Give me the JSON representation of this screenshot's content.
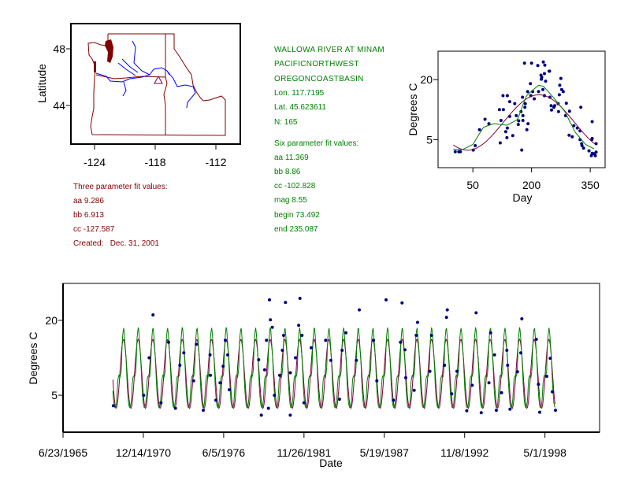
{
  "colors": {
    "points": "#000080",
    "three_param_fit": "#800040",
    "six_param_fit": "#008000",
    "map_borders": "#800000",
    "map_rivers": "#0000ff",
    "site_marker": "#800040"
  },
  "map": {
    "ylabel": "Latitude",
    "x_ticks": [
      "-124",
      "-118",
      "-112"
    ],
    "y_ticks": [
      "48",
      "44"
    ],
    "site_marker_icon": "triangle"
  },
  "three_param": {
    "title": "Three parameter fit values:",
    "lines": [
      "aa 9.286",
      "bb 6.913",
      "cc -127.587"
    ],
    "created": "Created:   Dec. 31, 2001"
  },
  "station": {
    "lines": [
      "WALLOWA RIVER AT MINAM",
      "PACIFICNORTHWEST",
      "OREGONCOASTBASIN",
      "Lon. 117.7195",
      "Lat. 45.623611",
      "N: 165"
    ]
  },
  "six_param": {
    "title": "Six parameter fit values:",
    "lines": [
      "aa 11.369",
      "bb 8.86",
      "cc -102.828",
      "mag 8.55",
      "begin 73.492",
      "end 235.087"
    ]
  },
  "chart_data": [
    {
      "type": "scatter",
      "xlabel": "Day",
      "ylabel": "Degrees C",
      "x_ticks": [
        50,
        200,
        350
      ],
      "y_ticks": [
        5,
        20
      ],
      "xlim": [
        -39,
        388
      ],
      "ylim": [
        -2,
        27.1
      ],
      "three_param_fit": {
        "aa": 9.286,
        "bb": 6.913,
        "cc": -127.587
      },
      "six_param_fit_curve": [
        [
          0,
          2.6
        ],
        [
          23,
          2.5
        ],
        [
          50,
          3.8
        ],
        [
          77,
          8.1
        ],
        [
          104,
          9.0
        ],
        [
          137,
          8.6
        ],
        [
          164,
          10.0
        ],
        [
          187,
          16.0
        ],
        [
          218,
          18.6
        ],
        [
          231,
          18.3
        ],
        [
          258,
          15.3
        ],
        [
          285,
          12.0
        ],
        [
          312,
          6.8
        ],
        [
          338,
          3.8
        ],
        [
          362,
          2.6
        ]
      ],
      "grid": false
    },
    {
      "type": "scatter",
      "xlabel": "Date",
      "ylabel": "Degrees C",
      "x_ticks": [
        "6/23/1965",
        "12/14/1970",
        "6/5/1976",
        "11/26/1981",
        "5/19/1987",
        "11/8/1992",
        "5/1/1998"
      ],
      "y_ticks": [
        5,
        20
      ],
      "xlim": [
        "1965-06-23",
        "2002-01-20"
      ],
      "ylim": [
        -2.4,
        27.4
      ],
      "fit_range": [
        "1968-11-15",
        "1999-01-20"
      ],
      "grid": false,
      "points": [
        [
          "1968-11-28",
          2.9
        ],
        [
          "1970-12-20",
          5.0
        ],
        [
          "1971-08-12",
          21.1
        ],
        [
          "1971-05-08",
          12.5
        ],
        [
          "1972-02-25",
          3.5
        ],
        [
          "1973-02-20",
          2.4
        ],
        [
          "1972-09-03",
          15.6
        ],
        [
          "1973-06-10",
          11.0
        ],
        [
          "1973-09-16",
          13.5
        ],
        [
          "1974-05-18",
          7.9
        ],
        [
          "1974-07-26",
          15.2
        ],
        [
          "1975-01-14",
          2.0
        ],
        [
          "1975-07-02",
          13.1
        ],
        [
          "1975-07-10",
          9.0
        ],
        [
          "1975-11-24",
          4.0
        ],
        [
          "1976-03-07",
          7.5
        ],
        [
          "1976-07-16",
          16.0
        ],
        [
          "1976-09-13",
          13.1
        ],
        [
          "1976-10-22",
          6.1
        ],
        [
          "1976-05-23",
          10.8
        ],
        [
          "1978-10-24",
          12.1
        ],
        [
          "1978-12-29",
          1.0
        ],
        [
          "1979-06-24",
          2.4
        ],
        [
          "1979-07-19",
          24.1
        ],
        [
          "1979-08-13",
          20.1
        ],
        [
          "1979-09-29",
          18.6
        ],
        [
          "1979-05-07",
          16.0
        ],
        [
          "1979-03-22",
          10.1
        ],
        [
          "1979-11-20",
          5.0
        ],
        [
          "1980-08-21",
          23.6
        ],
        [
          "1980-07-08",
          17.0
        ],
        [
          "1980-06-05",
          14.0
        ],
        [
          "1980-03-31",
          9.0
        ],
        [
          "1980-12-18",
          1.0
        ],
        [
          "1980-12-20",
          9.5
        ],
        [
          "1981-04-28",
          12.5
        ],
        [
          "1981-07-16",
          19.0
        ],
        [
          "1981-08-18",
          24.4
        ],
        [
          "1981-10-08",
          17.0
        ],
        [
          "1981-11-25",
          3.5
        ],
        [
          "1982-05-24",
          14.5
        ],
        [
          "1983-05-18",
          16.0
        ],
        [
          "1983-09-26",
          12.0
        ],
        [
          "1984-10-03",
          17.5
        ],
        [
          "1984-07-02",
          14.0
        ],
        [
          "1984-04-29",
          4.2
        ],
        [
          "1985-06-22",
          12.0
        ],
        [
          "1985-09-03",
          22.1
        ],
        [
          "1986-08-21",
          16.0
        ],
        [
          "1986-11-13",
          7.9
        ],
        [
          "1987-07-01",
          24.1
        ],
        [
          "1987-12-31",
          4.0
        ],
        [
          "1988-06-25",
          15.6
        ],
        [
          "1988-08-03",
          23.5
        ],
        [
          "1988-10-15",
          14.1
        ],
        [
          "1988-11-03",
          8.5
        ],
        [
          "1989-06-01",
          6.0
        ],
        [
          "1989-07-22",
          17.0
        ],
        [
          "1989-08-24",
          19.6
        ],
        [
          "1990-08-06",
          17.0
        ],
        [
          "1990-06-27",
          9.8
        ],
        [
          "1991-06-27",
          11.0
        ],
        [
          "1991-08-14",
          20.6
        ],
        [
          "1991-09-02",
          22.1
        ],
        [
          "1991-12-21",
          5.3
        ],
        [
          "1992-05-01",
          9.8
        ],
        [
          "1992-12-30",
          1.9
        ],
        [
          "1993-05-14",
          7.0
        ],
        [
          "1993-08-21",
          21.5
        ],
        [
          "1993-12-26",
          1.5
        ],
        [
          "1994-08-17",
          17.5
        ],
        [
          "1994-11-22",
          13.1
        ],
        [
          "1994-07-07",
          7.5
        ],
        [
          "1995-01-05",
          2.0
        ],
        [
          "1995-09-25",
          14.0
        ],
        [
          "1995-10-14",
          11.0
        ],
        [
          "1995-05-17",
          5.5
        ],
        [
          "1995-12-13",
          2.2
        ],
        [
          "1996-09-06",
          13.5
        ],
        [
          "1996-06-15",
          9.7
        ],
        [
          "1996-10-01",
          20.3
        ],
        [
          "1997-09-28",
          16.2
        ],
        [
          "1997-11-20",
          7.2
        ],
        [
          "1997-12-21",
          1.6
        ],
        [
          "1998-09-08",
          12.4
        ],
        [
          "1998-06-15",
          8.8
        ],
        [
          "1998-10-31",
          5.7
        ],
        [
          "1999-01-18",
          2.0
        ]
      ]
    }
  ]
}
